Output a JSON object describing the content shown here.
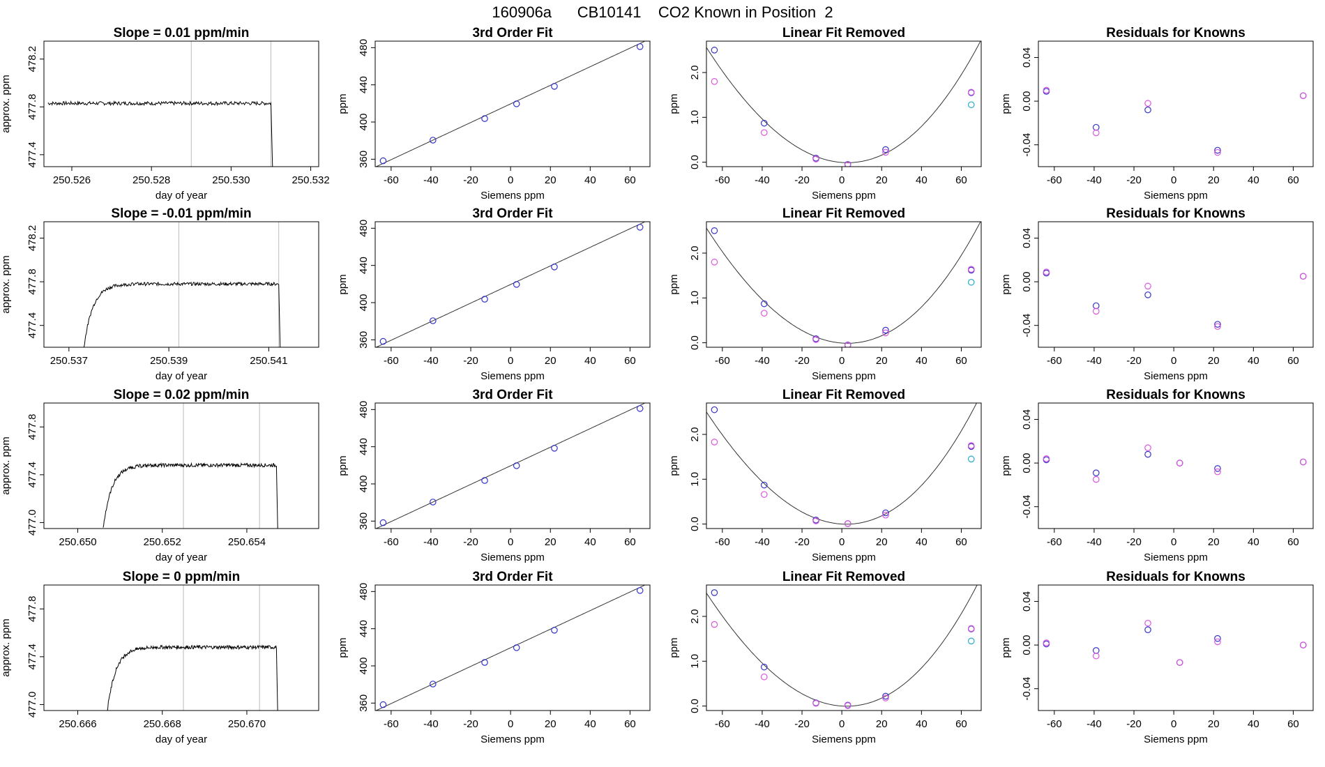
{
  "figure": {
    "suptitle": "160906a      CB10141    CO2 Known in Position  2"
  },
  "colors": {
    "trace": "#000000",
    "vline": "#bbbbbb",
    "blue": "#3333cc",
    "magenta": "#dd55dd",
    "cyan": "#22aacc"
  },
  "chart_data": [
    {
      "type": "line",
      "row": 1,
      "col": 1,
      "title": "Slope =  0.01  ppm/min",
      "xlabel": "day of year",
      "ylabel": "approx. ppm",
      "xlim": [
        250.5253,
        250.5322
      ],
      "ylim": [
        477.3,
        478.35
      ],
      "xticks": [
        250.526,
        250.528,
        250.53,
        250.532
      ],
      "xticklabels": [
        "250.526",
        "250.528",
        "250.530",
        "250.532"
      ],
      "yticks": [
        477.4,
        477.8,
        478.2
      ],
      "yticklabels": [
        "477.4",
        "477.8",
        "478.2"
      ],
      "vlines": [
        250.529,
        250.531
      ],
      "trace": {
        "start": 250.5254,
        "end": 250.531,
        "rise": 0,
        "base": 477.83,
        "drop_to": 477.3
      },
      "fit_series": []
    },
    {
      "type": "scatter",
      "row": 1,
      "col": 2,
      "title": "3rd Order Fit",
      "xlabel": "Siemens ppm",
      "ylabel": "ppm",
      "xlim": [
        -68,
        70
      ],
      "ylim": [
        352,
        487
      ],
      "xticks": [
        -60,
        -40,
        -20,
        0,
        20,
        40,
        60
      ],
      "xticklabels": [
        "-60",
        "-40",
        "-20",
        "0",
        "20",
        "40",
        "60"
      ],
      "yticks": [
        360,
        400,
        440,
        480
      ],
      "yticklabels": [
        "360",
        "400",
        "440",
        "480"
      ],
      "curve": {
        "coef": [
          419.5,
          1.0,
          0,
          0
        ]
      },
      "points": [
        {
          "series": "blue",
          "x": [
            -64,
            -39,
            -13,
            3,
            22,
            65
          ],
          "y": [
            358.3,
            380.5,
            403.7,
            419.6,
            438.4,
            481.1
          ]
        }
      ]
    },
    {
      "type": "scatter",
      "row": 1,
      "col": 3,
      "title": "Linear Fit Removed",
      "xlabel": "Siemens ppm",
      "ylabel": "ppm",
      "xlim": [
        -68,
        70
      ],
      "ylim": [
        -0.1,
        2.7
      ],
      "xticks": [
        -60,
        -40,
        -20,
        0,
        20,
        40,
        60
      ],
      "xticklabels": [
        "-60",
        "-40",
        "-20",
        "0",
        "20",
        "40",
        "60"
      ],
      "yticks": [
        0.0,
        1.0,
        2.0
      ],
      "yticklabels": [
        "0.0",
        "1.0",
        "2.0"
      ],
      "curve": {
        "coef": [
          -0.0063,
          -0.0032,
          0.000555,
          7e-07
        ]
      },
      "points": [
        {
          "series": "blue",
          "x": [
            -64,
            -39,
            -13,
            3,
            22,
            65
          ],
          "y": [
            2.5,
            0.87,
            0.09,
            -0.05,
            0.28,
            1.55
          ]
        },
        {
          "series": "magenta",
          "x": [
            -64,
            -39,
            -13,
            3,
            22,
            65
          ],
          "y": [
            1.8,
            0.66,
            0.07,
            -0.06,
            0.22,
            1.56
          ]
        },
        {
          "series": "cyan",
          "x": [
            65
          ],
          "y": [
            1.28
          ]
        }
      ]
    },
    {
      "type": "scatter",
      "row": 1,
      "col": 4,
      "title": "Residuals for Knowns",
      "xlabel": "Siemens ppm",
      "ylabel": "ppm",
      "xlim": [
        -68,
        70
      ],
      "ylim": [
        -0.06,
        0.055
      ],
      "xticks": [
        -60,
        -40,
        -20,
        0,
        20,
        40,
        60
      ],
      "xticklabels": [
        "-60",
        "-40",
        "-20",
        "0",
        "20",
        "40",
        "60"
      ],
      "yticks": [
        -0.04,
        0.0,
        0.04
      ],
      "yticklabels": [
        "-0.04",
        "0.00",
        "0.04"
      ],
      "points": [
        {
          "series": "blue",
          "x": [
            -64,
            -39,
            -13,
            22,
            65
          ],
          "y": [
            0.009,
            -0.024,
            -0.008,
            -0.045,
            0.005
          ]
        },
        {
          "series": "magenta",
          "x": [
            -64,
            -39,
            -13,
            22,
            65
          ],
          "y": [
            0.01,
            -0.029,
            -0.002,
            -0.047,
            0.005
          ]
        }
      ]
    },
    {
      "type": "line",
      "row": 2,
      "col": 1,
      "title": "Slope =  -0.01  ppm/min",
      "xlabel": "day of year",
      "ylabel": "approx. ppm",
      "xlim": [
        250.5365,
        250.542
      ],
      "ylim": [
        477.2,
        478.35
      ],
      "xticks": [
        250.537,
        250.539,
        250.541
      ],
      "xticklabels": [
        "250.537",
        "250.539",
        "250.541"
      ],
      "yticks": [
        477.4,
        477.8,
        478.2
      ],
      "yticklabels": [
        "477.4",
        "477.8",
        "478.2"
      ],
      "vlines": [
        250.5392,
        250.5412
      ],
      "trace": {
        "start": 250.5373,
        "end": 250.5412,
        "rise": 0.0004,
        "base": 477.78,
        "drop_to": 477.2
      },
      "fit_series": []
    },
    {
      "type": "scatter",
      "row": 2,
      "col": 2,
      "title": "3rd Order Fit",
      "xlabel": "Siemens ppm",
      "ylabel": "ppm",
      "xlim": [
        -68,
        70
      ],
      "ylim": [
        352,
        487
      ],
      "xticks": [
        -60,
        -40,
        -20,
        0,
        20,
        40,
        60
      ],
      "xticklabels": [
        "-60",
        "-40",
        "-20",
        "0",
        "20",
        "40",
        "60"
      ],
      "yticks": [
        360,
        400,
        440,
        480
      ],
      "yticklabels": [
        "360",
        "400",
        "440",
        "480"
      ],
      "curve": {
        "coef": [
          419.5,
          1.0,
          0,
          0
        ]
      },
      "points": [
        {
          "series": "blue",
          "x": [
            -64,
            -39,
            -13,
            3,
            22,
            65
          ],
          "y": [
            358.3,
            380.5,
            403.7,
            419.6,
            438.4,
            481.1
          ]
        }
      ]
    },
    {
      "type": "scatter",
      "row": 2,
      "col": 3,
      "title": "Linear Fit Removed",
      "xlabel": "Siemens ppm",
      "ylabel": "ppm",
      "xlim": [
        -68,
        70
      ],
      "ylim": [
        -0.1,
        2.7
      ],
      "xticks": [
        -60,
        -40,
        -20,
        0,
        20,
        40,
        60
      ],
      "xticklabels": [
        "-60",
        "-40",
        "-20",
        "0",
        "20",
        "40",
        "60"
      ],
      "yticks": [
        0.0,
        1.0,
        2.0
      ],
      "yticklabels": [
        "0.0",
        "1.0",
        "2.0"
      ],
      "curve": {
        "coef": [
          -0.0063,
          -0.0032,
          0.000555,
          7e-07
        ]
      },
      "points": [
        {
          "series": "blue",
          "x": [
            -64,
            -39,
            -13,
            3,
            22,
            65
          ],
          "y": [
            2.5,
            0.87,
            0.09,
            -0.05,
            0.28,
            1.62
          ]
        },
        {
          "series": "magenta",
          "x": [
            -64,
            -39,
            -13,
            3,
            22,
            65
          ],
          "y": [
            1.8,
            0.66,
            0.07,
            -0.06,
            0.22,
            1.64
          ]
        },
        {
          "series": "cyan",
          "x": [
            65
          ],
          "y": [
            1.35
          ]
        }
      ]
    },
    {
      "type": "scatter",
      "row": 2,
      "col": 4,
      "title": "Residuals for Knowns",
      "xlabel": "Siemens ppm",
      "ylabel": "ppm",
      "xlim": [
        -68,
        70
      ],
      "ylim": [
        -0.06,
        0.055
      ],
      "xticks": [
        -60,
        -40,
        -20,
        0,
        20,
        40,
        60
      ],
      "xticklabels": [
        "-60",
        "-40",
        "-20",
        "0",
        "20",
        "40",
        "60"
      ],
      "yticks": [
        -0.04,
        0.0,
        0.04
      ],
      "yticklabels": [
        "-0.04",
        "0.00",
        "0.04"
      ],
      "points": [
        {
          "series": "blue",
          "x": [
            -64,
            -39,
            -13,
            22,
            65
          ],
          "y": [
            0.008,
            -0.022,
            -0.012,
            -0.039,
            0.005
          ]
        },
        {
          "series": "magenta",
          "x": [
            -64,
            -39,
            -13,
            22,
            65
          ],
          "y": [
            0.009,
            -0.027,
            -0.004,
            -0.041,
            0.005
          ]
        }
      ]
    },
    {
      "type": "line",
      "row": 3,
      "col": 1,
      "title": "Slope =  0.02  ppm/min",
      "xlabel": "day of year",
      "ylabel": "approx. ppm",
      "xlim": [
        250.6492,
        250.6557
      ],
      "ylim": [
        476.95,
        478.0
      ],
      "xticks": [
        250.65,
        250.652,
        250.654
      ],
      "xticklabels": [
        "250.650",
        "250.652",
        "250.654"
      ],
      "yticks": [
        477.0,
        477.4,
        477.8
      ],
      "yticklabels": [
        "477.0",
        "477.4",
        "477.8"
      ],
      "vlines": [
        250.6525,
        250.6543
      ],
      "trace": {
        "start": 250.6506,
        "end": 250.6547,
        "rise": 0.00045,
        "base": 477.48,
        "drop_to": 476.95
      },
      "fit_series": []
    },
    {
      "type": "scatter",
      "row": 3,
      "col": 2,
      "title": "3rd Order Fit",
      "xlabel": "Siemens ppm",
      "ylabel": "ppm",
      "xlim": [
        -68,
        70
      ],
      "ylim": [
        352,
        487
      ],
      "xticks": [
        -60,
        -40,
        -20,
        0,
        20,
        40,
        60
      ],
      "xticklabels": [
        "-60",
        "-40",
        "-20",
        "0",
        "20",
        "40",
        "60"
      ],
      "yticks": [
        360,
        400,
        440,
        480
      ],
      "yticklabels": [
        "360",
        "400",
        "440",
        "480"
      ],
      "curve": {
        "coef": [
          419.5,
          1.0,
          0,
          0
        ]
      },
      "points": [
        {
          "series": "blue",
          "x": [
            -64,
            -39,
            -13,
            3,
            22,
            65
          ],
          "y": [
            358.3,
            380.5,
            403.7,
            419.6,
            438.4,
            481.1
          ]
        }
      ]
    },
    {
      "type": "scatter",
      "row": 3,
      "col": 3,
      "title": "Linear Fit Removed",
      "xlabel": "Siemens ppm",
      "ylabel": "ppm",
      "xlim": [
        -68,
        70
      ],
      "ylim": [
        -0.1,
        2.7
      ],
      "xticks": [
        -60,
        -40,
        -20,
        0,
        20,
        40,
        60
      ],
      "xticklabels": [
        "-60",
        "-40",
        "-20",
        "0",
        "20",
        "40",
        "60"
      ],
      "yticks": [
        0.0,
        1.0,
        2.0
      ],
      "yticklabels": [
        "0.0",
        "1.0",
        "2.0"
      ],
      "curve": {
        "coef": [
          0.0,
          -0.0025,
          0.000565,
          9e-07
        ]
      },
      "points": [
        {
          "series": "blue",
          "x": [
            -64,
            -39,
            -13,
            3,
            22,
            65
          ],
          "y": [
            2.55,
            0.87,
            0.09,
            0.01,
            0.25,
            1.73
          ]
        },
        {
          "series": "magenta",
          "x": [
            -64,
            -39,
            -13,
            3,
            22,
            65
          ],
          "y": [
            1.83,
            0.66,
            0.07,
            0.01,
            0.2,
            1.75
          ]
        },
        {
          "series": "cyan",
          "x": [
            65
          ],
          "y": [
            1.45
          ]
        }
      ]
    },
    {
      "type": "scatter",
      "row": 3,
      "col": 4,
      "title": "Residuals for Knowns",
      "xlabel": "Siemens ppm",
      "ylabel": "ppm",
      "xlim": [
        -68,
        70
      ],
      "ylim": [
        -0.06,
        0.055
      ],
      "xticks": [
        -60,
        -40,
        -20,
        0,
        20,
        40,
        60
      ],
      "xticklabels": [
        "-60",
        "-40",
        "-20",
        "0",
        "20",
        "40",
        "60"
      ],
      "yticks": [
        -0.04,
        0.0,
        0.04
      ],
      "yticklabels": [
        "-0.04",
        "0.00",
        "0.04"
      ],
      "points": [
        {
          "series": "blue",
          "x": [
            -64,
            -39,
            -13,
            3,
            22,
            65
          ],
          "y": [
            0.003,
            -0.009,
            0.008,
            0.0,
            -0.005,
            0.001
          ]
        },
        {
          "series": "magenta",
          "x": [
            -64,
            -39,
            -13,
            3,
            22,
            65
          ],
          "y": [
            0.004,
            -0.015,
            0.014,
            0.0,
            -0.008,
            0.001
          ]
        }
      ]
    },
    {
      "type": "line",
      "row": 4,
      "col": 1,
      "title": "Slope =  0  ppm/min",
      "xlabel": "day of year",
      "ylabel": "approx. ppm",
      "xlim": [
        250.6652,
        250.6717
      ],
      "ylim": [
        476.95,
        478.0
      ],
      "xticks": [
        250.666,
        250.668,
        250.67
      ],
      "xticklabels": [
        "250.666",
        "250.668",
        "250.670"
      ],
      "yticks": [
        477.0,
        477.4,
        477.8
      ],
      "yticklabels": [
        "477.0",
        "477.4",
        "477.8"
      ],
      "vlines": [
        250.6685,
        250.6703
      ],
      "trace": {
        "start": 250.6667,
        "end": 250.6707,
        "rise": 0.00045,
        "base": 477.48,
        "drop_to": 476.95
      },
      "fit_series": []
    },
    {
      "type": "scatter",
      "row": 4,
      "col": 2,
      "title": "3rd Order Fit",
      "xlabel": "Siemens ppm",
      "ylabel": "ppm",
      "xlim": [
        -68,
        70
      ],
      "ylim": [
        352,
        487
      ],
      "xticks": [
        -60,
        -40,
        -20,
        0,
        20,
        40,
        60
      ],
      "xticklabels": [
        "-60",
        "-40",
        "-20",
        "0",
        "20",
        "40",
        "60"
      ],
      "yticks": [
        360,
        400,
        440,
        480
      ],
      "yticklabels": [
        "360",
        "400",
        "440",
        "480"
      ],
      "curve": {
        "coef": [
          419.5,
          1.0,
          0,
          0
        ]
      },
      "points": [
        {
          "series": "blue",
          "x": [
            -64,
            -39,
            -13,
            3,
            22,
            65
          ],
          "y": [
            358.3,
            380.5,
            403.7,
            419.6,
            438.4,
            481.1
          ]
        }
      ]
    },
    {
      "type": "scatter",
      "row": 4,
      "col": 3,
      "title": "Linear Fit Removed",
      "xlabel": "Siemens ppm",
      "ylabel": "ppm",
      "xlim": [
        -68,
        70
      ],
      "ylim": [
        -0.1,
        2.7
      ],
      "xticks": [
        -60,
        -40,
        -20,
        0,
        20,
        40,
        60
      ],
      "xticklabels": [
        "-60",
        "-40",
        "-20",
        "0",
        "20",
        "40",
        "60"
      ],
      "yticks": [
        0.0,
        1.0,
        2.0
      ],
      "yticklabels": [
        "0.0",
        "1.0",
        "2.0"
      ],
      "curve": {
        "coef": [
          0.0,
          -0.0028,
          0.000565,
          9e-07
        ]
      },
      "points": [
        {
          "series": "blue",
          "x": [
            -64,
            -39,
            -13,
            3,
            22,
            65
          ],
          "y": [
            2.53,
            0.87,
            0.07,
            0.02,
            0.22,
            1.72
          ]
        },
        {
          "series": "magenta",
          "x": [
            -64,
            -39,
            -13,
            3,
            22,
            65
          ],
          "y": [
            1.82,
            0.65,
            0.06,
            0.01,
            0.18,
            1.73
          ]
        },
        {
          "series": "cyan",
          "x": [
            65
          ],
          "y": [
            1.45
          ]
        }
      ]
    },
    {
      "type": "scatter",
      "row": 4,
      "col": 4,
      "title": "Residuals for Knowns",
      "xlabel": "Siemens ppm",
      "ylabel": "ppm",
      "xlim": [
        -68,
        70
      ],
      "ylim": [
        -0.06,
        0.055
      ],
      "xticks": [
        -60,
        -40,
        -20,
        0,
        20,
        40,
        60
      ],
      "xticklabels": [
        "-60",
        "-40",
        "-20",
        "0",
        "20",
        "40",
        "60"
      ],
      "yticks": [
        -0.04,
        0.0,
        0.04
      ],
      "yticklabels": [
        "-0.04",
        "0.00",
        "0.04"
      ],
      "points": [
        {
          "series": "blue",
          "x": [
            -64,
            -39,
            -13,
            3,
            22,
            65
          ],
          "y": [
            0.001,
            -0.005,
            0.014,
            -0.016,
            0.006,
            0.0
          ]
        },
        {
          "series": "magenta",
          "x": [
            -64,
            -39,
            -13,
            3,
            22,
            65
          ],
          "y": [
            0.002,
            -0.01,
            0.02,
            -0.016,
            0.003,
            0.0
          ]
        }
      ]
    }
  ]
}
